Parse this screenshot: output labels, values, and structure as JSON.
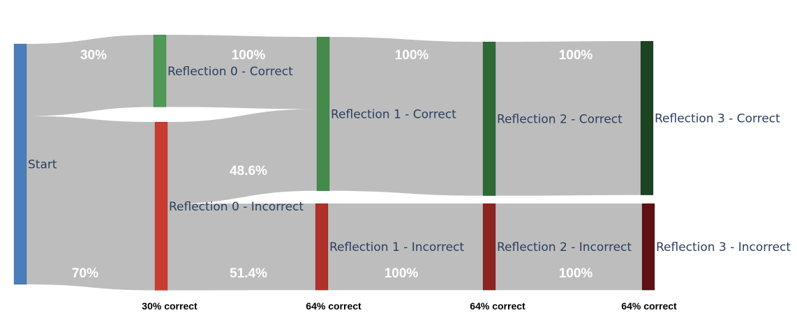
{
  "chart_data": {
    "type": "sankey",
    "nodes": [
      {
        "id": "start",
        "label": "Start",
        "color": "#4a7ebb"
      },
      {
        "id": "r0c",
        "label": "Reflection 0 - Correct",
        "color": "#4e9a56"
      },
      {
        "id": "r0i",
        "label": "Reflection 0 - Incorrect",
        "color": "#cc3b30"
      },
      {
        "id": "r1c",
        "label": "Reflection 1 - Correct",
        "color": "#448b4b"
      },
      {
        "id": "r1i",
        "label": "Reflection 1 - Incorrect",
        "color": "#b0302a"
      },
      {
        "id": "r2c",
        "label": "Reflection 2 - Correct",
        "color": "#2e6a35"
      },
      {
        "id": "r2i",
        "label": "Reflection 2 - Incorrect",
        "color": "#8c2520"
      },
      {
        "id": "r3c",
        "label": "Reflection 3 - Correct",
        "color": "#1c4422"
      },
      {
        "id": "r3i",
        "label": "Reflection 3 - Incorrect",
        "color": "#5e1015"
      }
    ],
    "links": [
      {
        "source": "start",
        "target": "r0c",
        "value": 30,
        "label": "30%"
      },
      {
        "source": "start",
        "target": "r0i",
        "value": 70,
        "label": "70%"
      },
      {
        "source": "r0c",
        "target": "r1c",
        "value": 30,
        "label": "100%"
      },
      {
        "source": "r0i",
        "target": "r1c",
        "value": 34,
        "label": "48.6%"
      },
      {
        "source": "r0i",
        "target": "r1i",
        "value": 36,
        "label": "51.4%"
      },
      {
        "source": "r1c",
        "target": "r2c",
        "value": 64,
        "label": "100%"
      },
      {
        "source": "r1i",
        "target": "r2i",
        "value": 36,
        "label": "100%"
      },
      {
        "source": "r2c",
        "target": "r3c",
        "value": 64,
        "label": "100%"
      },
      {
        "source": "r2i",
        "target": "r3i",
        "value": 36,
        "label": "100%"
      }
    ],
    "stage_labels": [
      "30% correct",
      "64% correct",
      "64% correct",
      "64% correct"
    ],
    "link_color": "#bdbdbd"
  }
}
